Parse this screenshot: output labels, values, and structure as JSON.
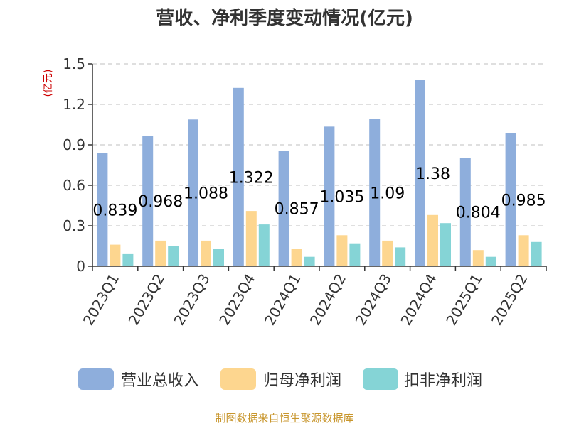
{
  "chart_data": {
    "type": "bar",
    "title": "营收、净利季度变动情况(亿元)",
    "unit_label": "(亿元)",
    "categories": [
      "2023Q1",
      "2023Q2",
      "2023Q3",
      "2023Q4",
      "2024Q1",
      "2024Q2",
      "2024Q3",
      "2024Q4",
      "2025Q1",
      "2025Q2"
    ],
    "series": [
      {
        "name": "营业总收入",
        "color": "#8eaedc",
        "values": [
          0.839,
          0.968,
          1.088,
          1.322,
          0.857,
          1.035,
          1.09,
          1.38,
          0.804,
          0.985
        ],
        "data_labels": [
          "0.839",
          "0.968",
          "1.088",
          "1.322",
          "0.857",
          "1.035",
          "1.09",
          "1.38",
          "0.804",
          "0.985"
        ]
      },
      {
        "name": "归母净利润",
        "color": "#fdd68f",
        "values": [
          0.16,
          0.19,
          0.19,
          0.41,
          0.13,
          0.23,
          0.19,
          0.38,
          0.12,
          0.23
        ]
      },
      {
        "name": "扣非净利润",
        "color": "#85d4d6",
        "values": [
          0.09,
          0.15,
          0.13,
          0.31,
          0.07,
          0.17,
          0.14,
          0.32,
          0.07,
          0.18
        ]
      }
    ],
    "ylim": [
      0,
      1.5
    ],
    "yticks": [
      "0",
      "0.3",
      "0.6",
      "0.9",
      "1.2",
      "1.5"
    ],
    "grid": true,
    "legend_position": "bottom",
    "colors": {
      "unit": "#cc0000",
      "source": "#c8962d",
      "axis": "#333333",
      "grid": "#cccccc"
    }
  },
  "footer": {
    "source": "制图数据来自恒生聚源数据库"
  }
}
